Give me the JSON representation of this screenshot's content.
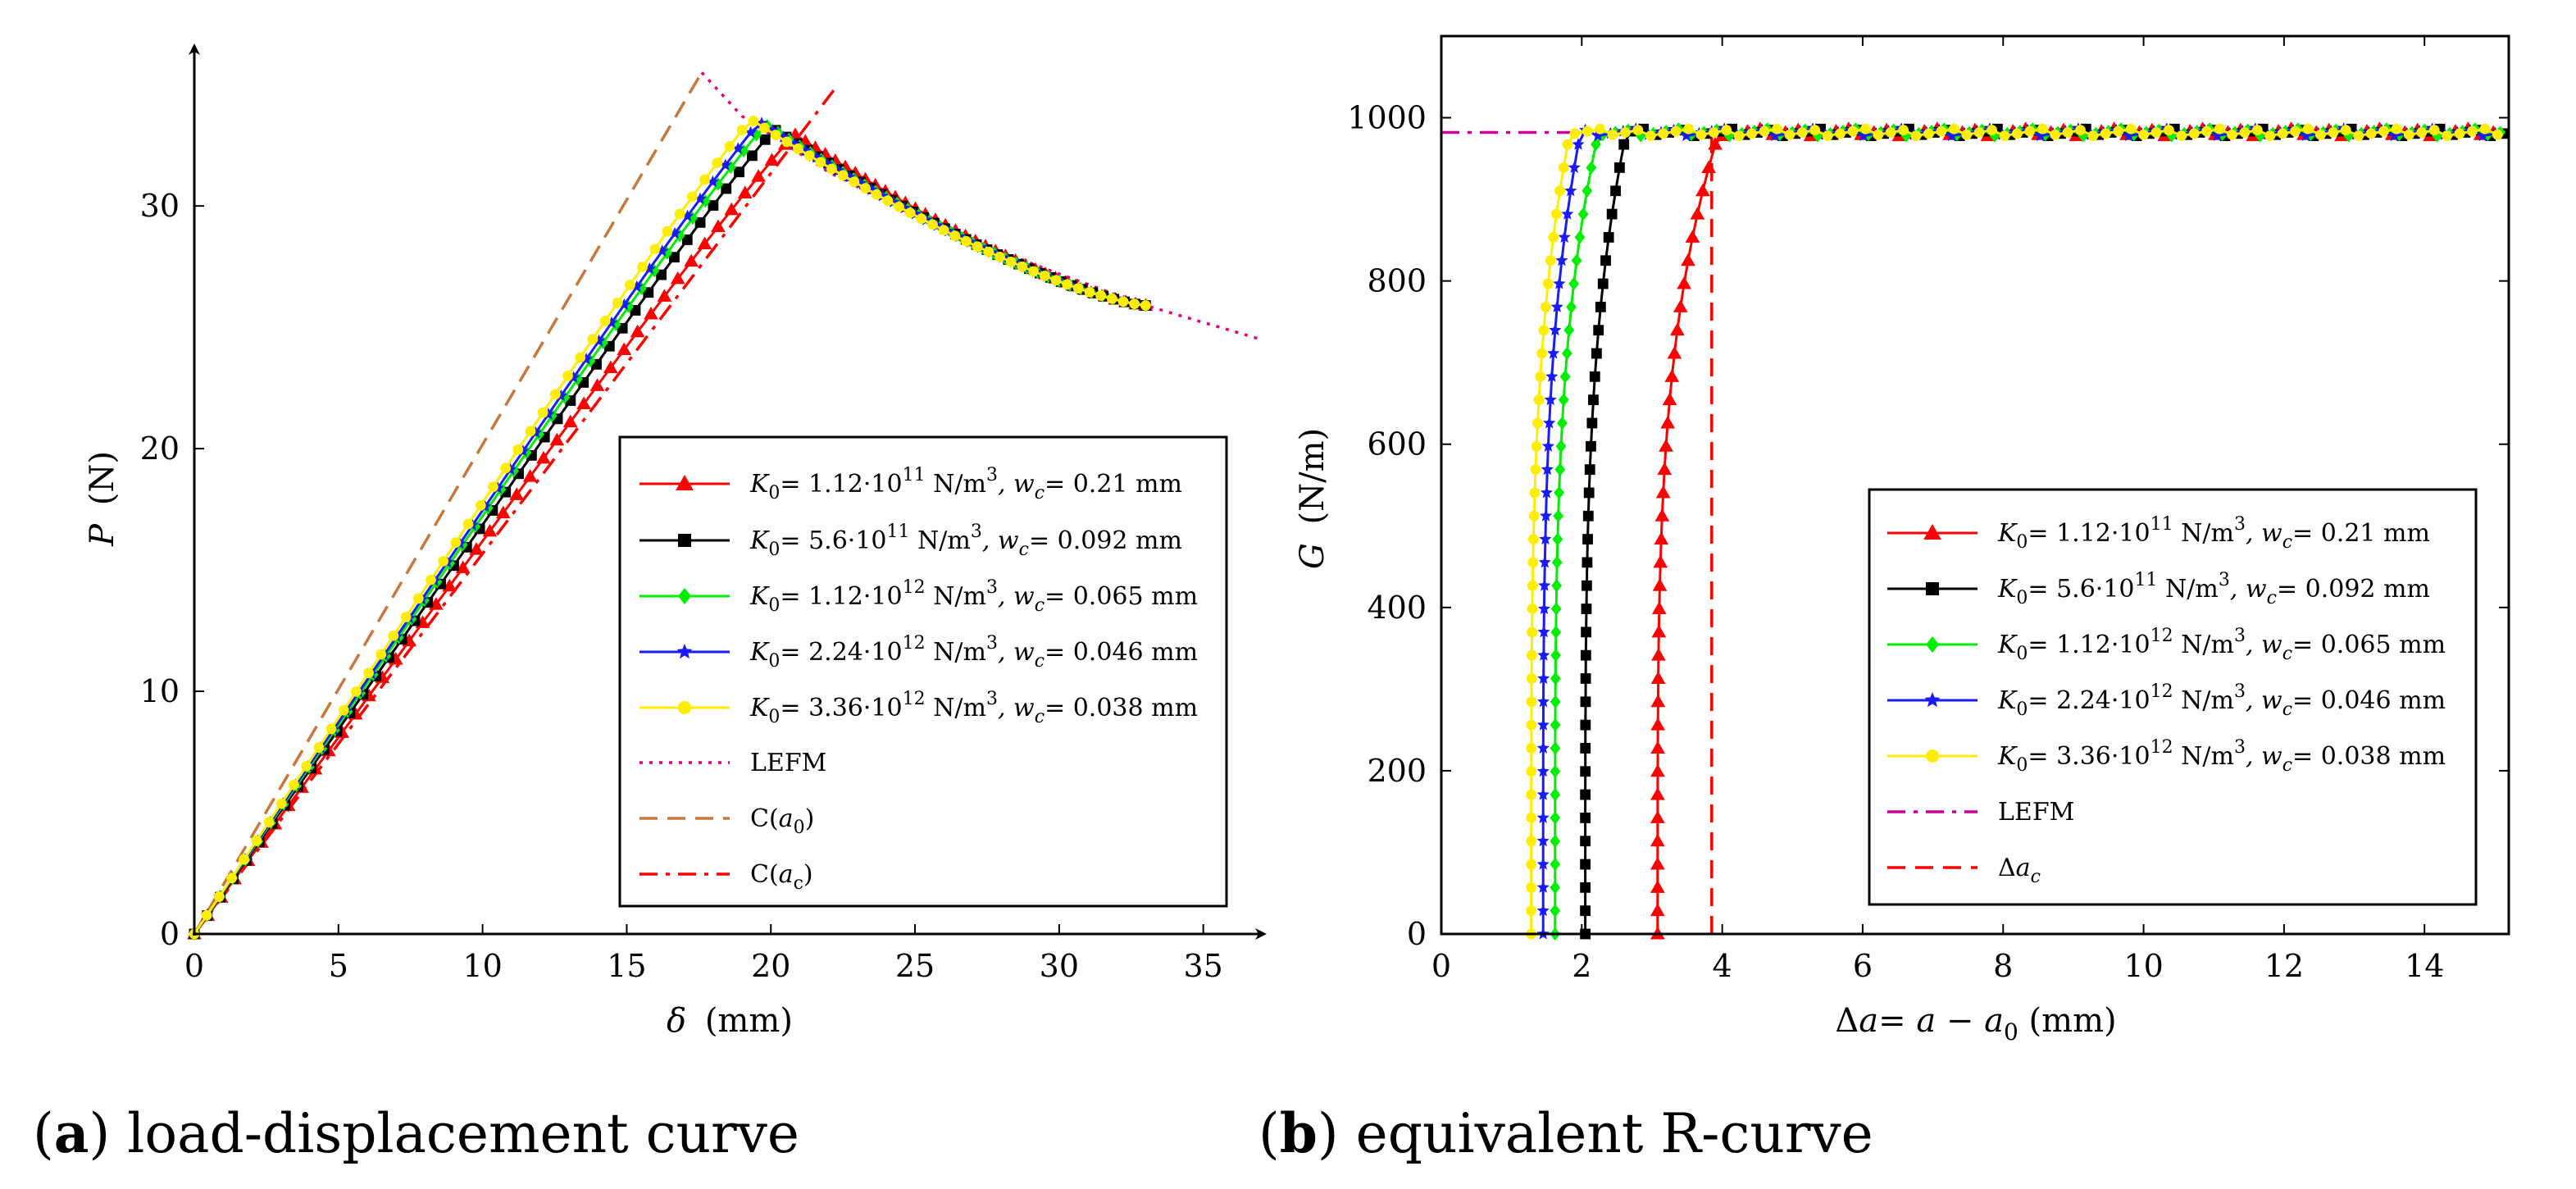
{
  "colors": {
    "red": "#ff0000",
    "black": "#000000",
    "green": "#00ee00",
    "blue": "#1a1aff",
    "yellow": "#ffee00",
    "lefm_a": "#e6007e",
    "ca0": "#c8783c",
    "lefm_b": "#cc0099",
    "dashed_red": "#ff0000"
  },
  "chart_data": [
    {
      "type": "line",
      "panel": "a",
      "caption_letter": "a",
      "caption_text": "load-displacement curve",
      "xlabel_symbol": "δ",
      "xlabel_unit": "(mm)",
      "ylabel_symbol": "P",
      "ylabel_unit": "(N)",
      "xlim": [
        0,
        37
      ],
      "ylim": [
        0,
        37
      ],
      "xticks": [
        0,
        5,
        10,
        15,
        20,
        25,
        30,
        35
      ],
      "yticks": [
        0,
        10,
        20,
        30
      ],
      "series": [
        {
          "key": "s1",
          "name": "K0= 1.12·10^11 N/m^3, wc= 0.21 mm",
          "marker": "triangle",
          "color_key": "red",
          "peak": [
            20.5,
            33.2
          ],
          "end": [
            33.0,
            25.9
          ]
        },
        {
          "key": "s2",
          "name": "K0= 5.6·10^11 N/m^3, wc= 0.092 mm",
          "marker": "square",
          "color_key": "black",
          "peak": [
            19.8,
            33.4
          ],
          "end": [
            33.0,
            25.9
          ]
        },
        {
          "key": "s3",
          "name": "K0= 1.12·10^12 N/m^3, wc= 0.065 mm",
          "marker": "diamond",
          "color_key": "green",
          "peak": [
            19.5,
            33.6
          ],
          "end": [
            33.0,
            25.9
          ]
        },
        {
          "key": "s4",
          "name": "K0= 2.24·10^12 N/m^3, wc= 0.046 mm",
          "marker": "star",
          "color_key": "blue",
          "peak": [
            19.3,
            33.7
          ],
          "end": [
            33.0,
            25.9
          ]
        },
        {
          "key": "s5",
          "name": "K0= 3.36·10^12 N/m^3, wc= 0.038 mm",
          "marker": "circle",
          "color_key": "yellow",
          "peak": [
            19.0,
            33.8
          ],
          "end": [
            33.0,
            25.9
          ]
        }
      ],
      "reference_lines": [
        {
          "key": "lefm",
          "name": "LEFM",
          "style": "dotted",
          "color_key": "lefm_a",
          "points": [
            [
              17.6,
              35.5
            ],
            [
              19,
              33.7
            ],
            [
              22,
              31.4
            ],
            [
              26,
              29.0
            ],
            [
              30,
              27.2
            ],
            [
              33,
              25.9
            ],
            [
              37,
              24.5
            ]
          ]
        },
        {
          "key": "ca0",
          "name": "C(a0)",
          "style": "dashed",
          "color_key": "ca0",
          "points": [
            [
              0,
              0
            ],
            [
              17.6,
              35.5
            ]
          ]
        },
        {
          "key": "cac",
          "name": "C(ac)",
          "style": "dashdot",
          "color_key": "red",
          "points": [
            [
              0,
              0
            ],
            [
              22.2,
              34.8
            ]
          ]
        }
      ],
      "legend": {
        "s1": {
          "sym": "K",
          "sub": "0",
          "eq": "= 1.12·10",
          "exp": "11",
          "unit": " N/m",
          "uexp": "3",
          "wsym": ", w",
          "wsub": "c",
          "wval": "= 0.21 mm"
        },
        "s2": {
          "sym": "K",
          "sub": "0",
          "eq": "= 5.6·10",
          "exp": "11",
          "unit": " N/m",
          "uexp": "3",
          "wsym": ", w",
          "wsub": "c",
          "wval": "= 0.092 mm"
        },
        "s3": {
          "sym": "K",
          "sub": "0",
          "eq": "= 1.12·10",
          "exp": "12",
          "unit": " N/m",
          "uexp": "3",
          "wsym": ", w",
          "wsub": "c",
          "wval": "= 0.065 mm"
        },
        "s4": {
          "sym": "K",
          "sub": "0",
          "eq": "= 2.24·10",
          "exp": "12",
          "unit": " N/m",
          "uexp": "3",
          "wsym": ", w",
          "wsub": "c",
          "wval": "= 0.046 mm"
        },
        "s5": {
          "sym": "K",
          "sub": "0",
          "eq": "= 3.36·10",
          "exp": "12",
          "unit": " N/m",
          "uexp": "3",
          "wsym": ", w",
          "wsub": "c",
          "wval": "= 0.038 mm"
        },
        "lefm": "LEFM",
        "ca0_pre": "C(",
        "ca0_sym": "a",
        "ca0_sub": "0",
        "ca0_post": ")",
        "cac_pre": "C(",
        "cac_sym": "a",
        "cac_sub": "c",
        "cac_post": ")"
      }
    },
    {
      "type": "line",
      "panel": "b",
      "caption_letter": "b",
      "caption_text": "equivalent R-curve",
      "xlabel_pre": "Δ",
      "xlabel_a": "a",
      "xlabel_eq": "= ",
      "xlabel_a2": "a",
      "xlabel_minus": " − ",
      "xlabel_a3": "a",
      "xlabel_sub": "0",
      "xlabel_unit": " (mm)",
      "ylabel_symbol": "G",
      "ylabel_unit": "(N/m)",
      "xlim": [
        0,
        15.2
      ],
      "ylim": [
        0,
        1100
      ],
      "xticks": [
        0,
        2,
        4,
        6,
        8,
        10,
        12,
        14
      ],
      "yticks": [
        0,
        200,
        400,
        600,
        800,
        1000
      ],
      "plateau": 982,
      "series": [
        {
          "key": "s1",
          "marker": "triangle",
          "color_key": "red",
          "x_start": 3.08,
          "x_end": 3.9
        },
        {
          "key": "s2",
          "marker": "square",
          "color_key": "black",
          "x_start": 2.05,
          "x_end": 2.6
        },
        {
          "key": "s3",
          "marker": "diamond",
          "color_key": "green",
          "x_start": 1.62,
          "x_end": 2.2
        },
        {
          "key": "s4",
          "marker": "star",
          "color_key": "blue",
          "x_start": 1.45,
          "x_end": 1.95
        },
        {
          "key": "s5",
          "marker": "circle",
          "color_key": "yellow",
          "x_start": 1.28,
          "x_end": 1.8
        }
      ],
      "reference_lines": [
        {
          "key": "lefm",
          "name": "LEFM",
          "style": "dashdot",
          "color_key": "lefm_b",
          "points": [
            [
              0,
              982
            ],
            [
              4.0,
              982
            ]
          ]
        },
        {
          "key": "dac",
          "name": "Δac",
          "style": "dashed",
          "color_key": "dashed_red",
          "points": [
            [
              3.85,
              0
            ],
            [
              3.85,
              982
            ]
          ]
        }
      ],
      "legend": {
        "lefm": "LEFM",
        "dac_pre": "Δ",
        "dac_sym": "a",
        "dac_sub": "c"
      }
    }
  ]
}
